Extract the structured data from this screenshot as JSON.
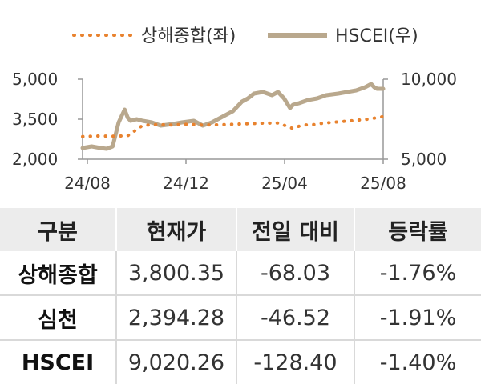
{
  "chart_data": {
    "type": "line",
    "x_tick_labels": [
      "24/08",
      "24/12",
      "25/04",
      "25/08"
    ],
    "y_left": {
      "ticks": [
        "5,000",
        "3,500",
        "2,000"
      ],
      "range": [
        2000,
        5000
      ]
    },
    "y_right": {
      "ticks": [
        "10,000",
        "5,000"
      ],
      "range": [
        5000,
        10000
      ]
    },
    "series": [
      {
        "name": "상해종합(좌)",
        "axis": "left",
        "style": "dotted",
        "color": "#e8822e",
        "t": [
          0,
          5,
          10,
          15,
          20,
          25,
          30,
          32,
          35,
          40,
          45,
          50,
          55,
          60,
          65,
          70,
          73,
          77,
          80,
          85,
          90,
          95,
          100
        ],
        "values": [
          2850,
          2870,
          2860,
          2880,
          3270,
          3300,
          3280,
          3300,
          3310,
          3280,
          3290,
          3310,
          3330,
          3350,
          3360,
          3150,
          3280,
          3300,
          3350,
          3400,
          3450,
          3500,
          3600
        ]
      },
      {
        "name": "HSCEI(우)",
        "axis": "right",
        "style": "solid",
        "color": "#b9a88d",
        "t": [
          0,
          3,
          6,
          8,
          10,
          12,
          14,
          15,
          16,
          18,
          20,
          23,
          26,
          30,
          33,
          37,
          40,
          43,
          46,
          50,
          53,
          55,
          57,
          60,
          63,
          65,
          67,
          69,
          70,
          72,
          75,
          78,
          81,
          85,
          88,
          91,
          94,
          96,
          97,
          98,
          100
        ],
        "values": [
          5700,
          5800,
          5700,
          5650,
          5800,
          7300,
          8100,
          7600,
          7400,
          7500,
          7400,
          7300,
          7100,
          7200,
          7300,
          7400,
          7100,
          7300,
          7600,
          8000,
          8600,
          8800,
          9100,
          9200,
          9000,
          9200,
          8800,
          8200,
          8400,
          8500,
          8700,
          8800,
          9000,
          9100,
          9200,
          9300,
          9500,
          9700,
          9500,
          9400,
          9400
        ]
      }
    ]
  },
  "table": {
    "headers": [
      "구분",
      "현재가",
      "전일 대비",
      "등락률"
    ],
    "rows": [
      [
        "상해종합",
        "3,800.35",
        "-68.03",
        "-1.76%"
      ],
      [
        "심천",
        "2,394.28",
        "-46.52",
        "-1.91%"
      ],
      [
        "HSCEI",
        "9,020.26",
        "-128.40",
        "-1.40%"
      ]
    ]
  }
}
